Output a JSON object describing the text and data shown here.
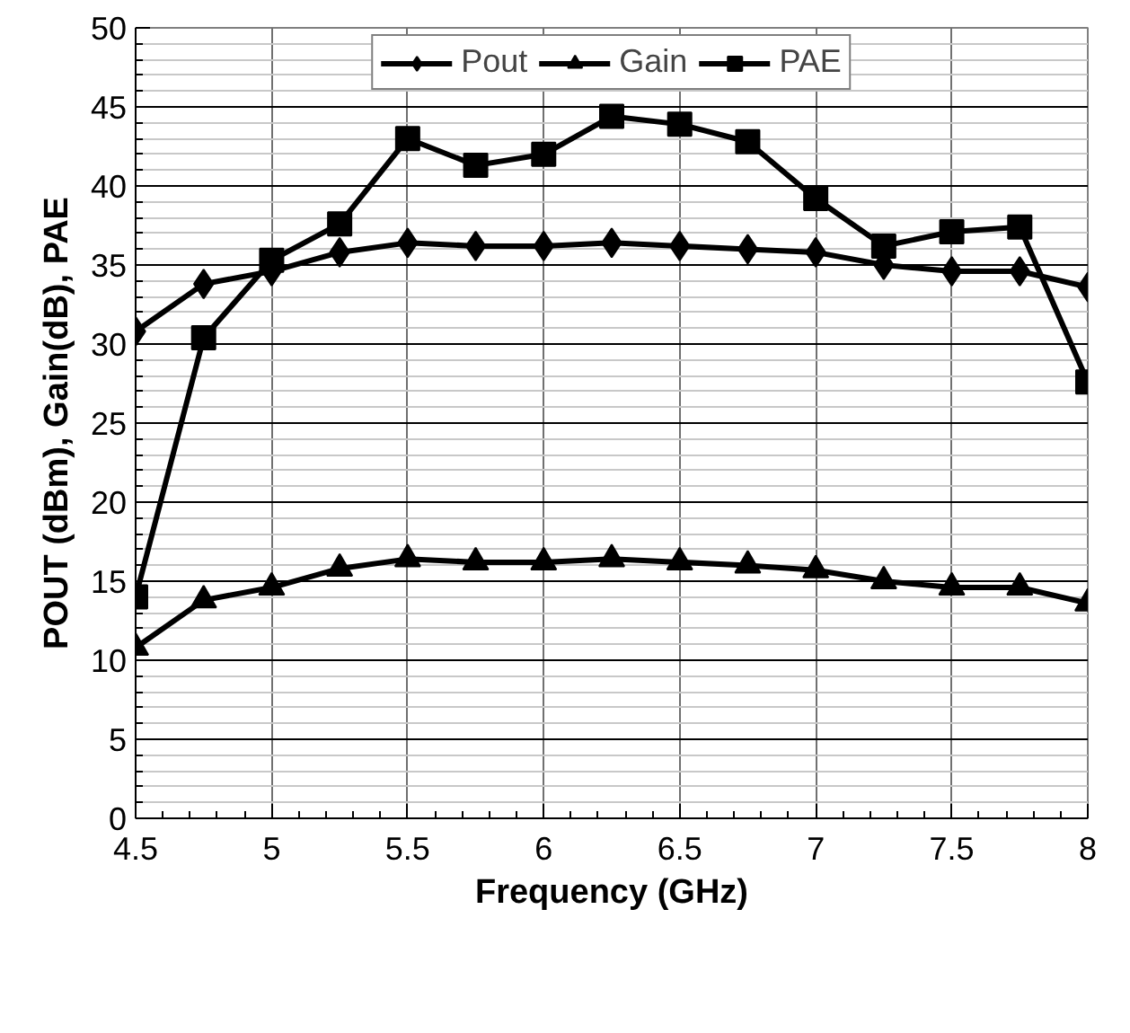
{
  "chart_data": {
    "type": "line",
    "xlabel": "Frequency (GHz)",
    "ylabel": "POUT (dBm), Gain(dB), PAE",
    "x": [
      4.5,
      4.75,
      5,
      5.25,
      5.5,
      5.75,
      6,
      6.25,
      6.5,
      6.75,
      7,
      7.25,
      7.5,
      7.75,
      8
    ],
    "series": [
      {
        "name": "Pout",
        "color": "#000000",
        "marker": "diamond",
        "values": [
          30.8,
          33.8,
          34.6,
          35.8,
          36.4,
          36.2,
          36.2,
          36.4,
          36.2,
          36.0,
          35.8,
          35.0,
          34.6,
          34.6,
          33.6
        ]
      },
      {
        "name": "Gain",
        "color": "#000000",
        "marker": "triangle",
        "values": [
          10.8,
          13.8,
          14.6,
          15.8,
          16.4,
          16.2,
          16.2,
          16.4,
          16.2,
          16.0,
          15.7,
          15.0,
          14.6,
          14.6,
          13.6
        ]
      },
      {
        "name": "PAE",
        "color": "#000000",
        "marker": "square",
        "values": [
          14.0,
          30.4,
          35.3,
          37.6,
          43.0,
          41.3,
          42.0,
          44.4,
          43.9,
          42.8,
          39.2,
          36.2,
          37.1,
          37.4,
          27.6
        ]
      }
    ],
    "xlim": [
      4.5,
      8
    ],
    "ylim": [
      0,
      50
    ],
    "xticks": [
      4.5,
      5,
      5.5,
      6,
      6.5,
      7,
      7.5,
      8
    ],
    "yticks": [
      0,
      5,
      10,
      15,
      20,
      25,
      30,
      35,
      40,
      45,
      50
    ],
    "grid": true,
    "legend": "top",
    "line_style": "solid"
  }
}
